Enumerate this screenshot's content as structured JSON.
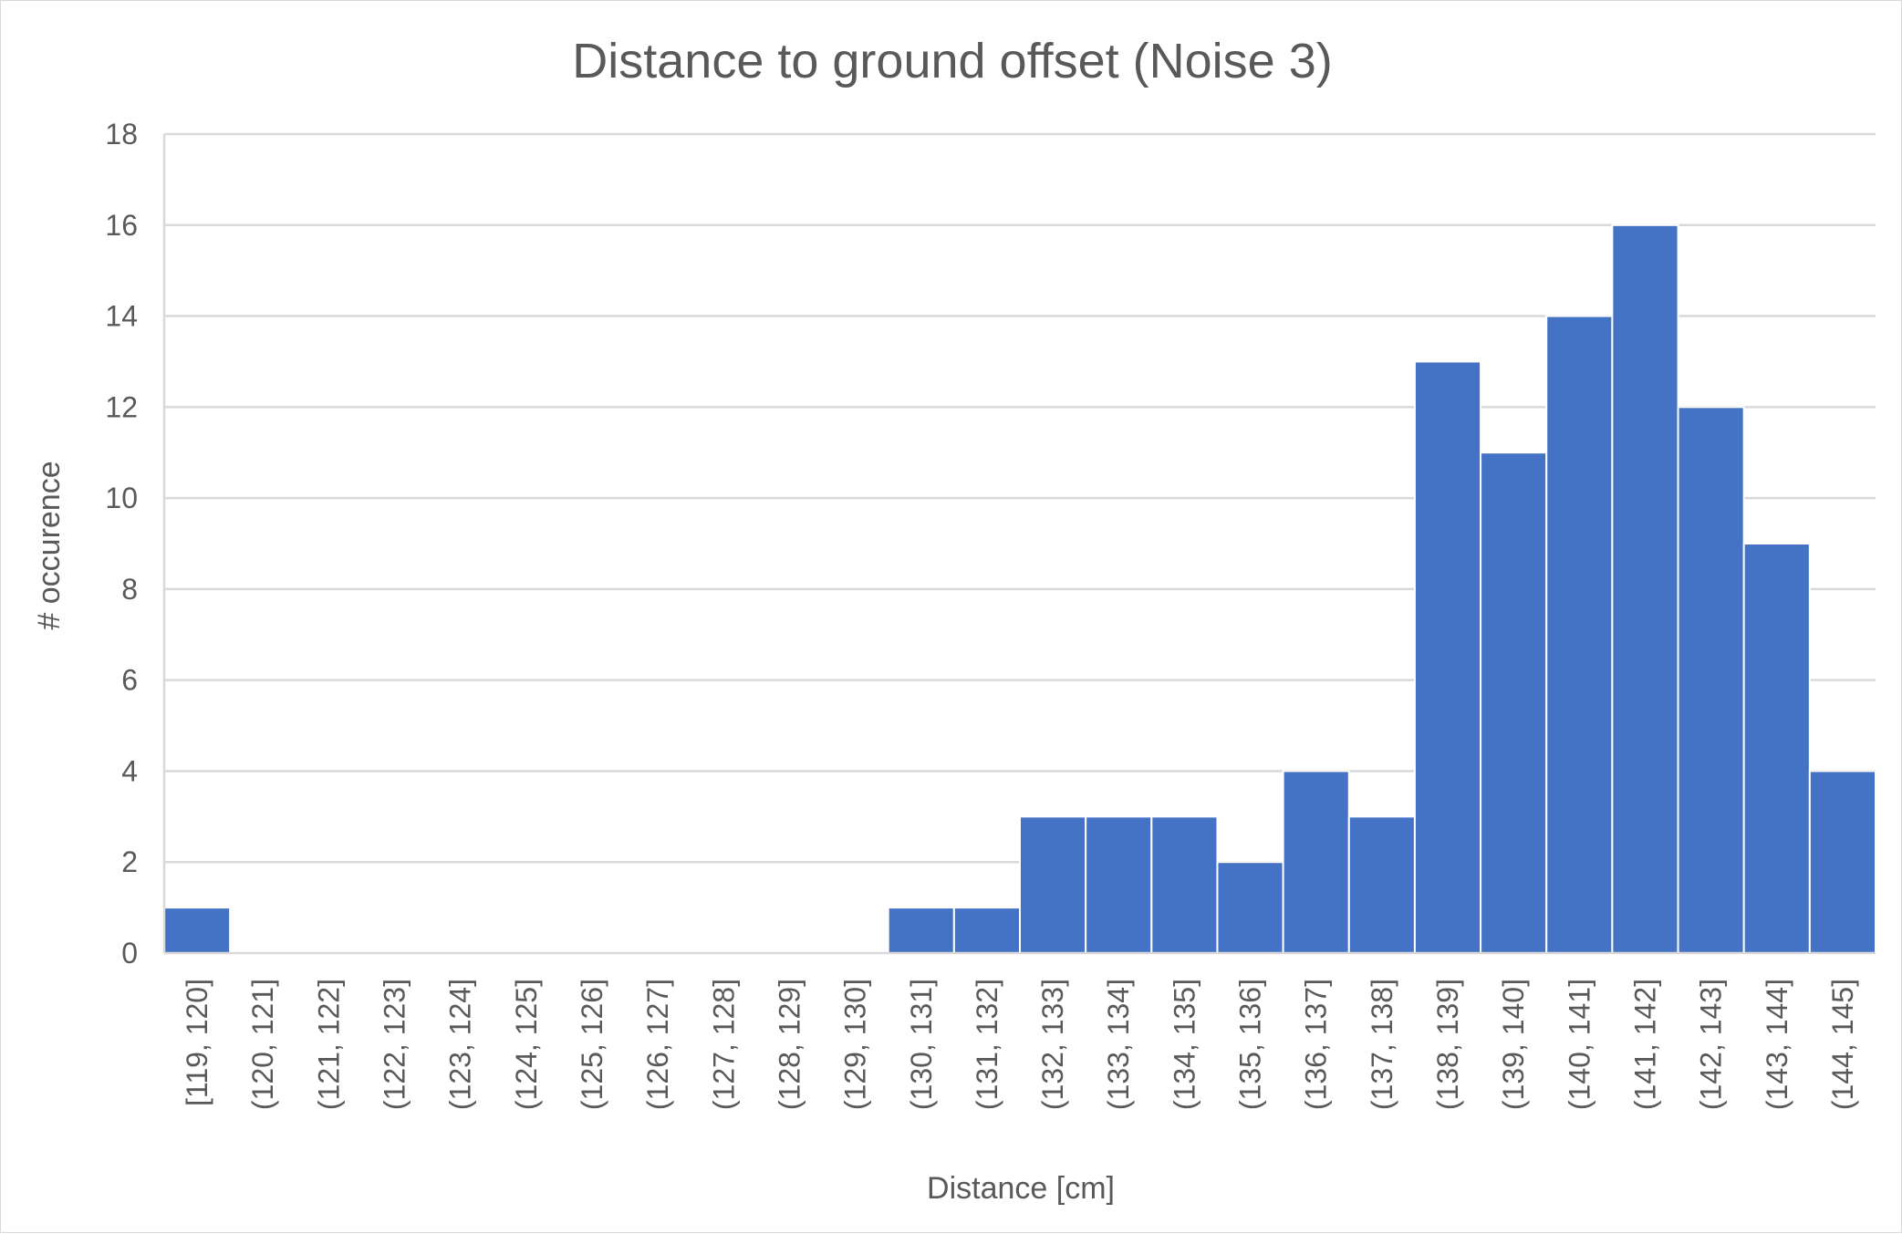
{
  "chart_data": {
    "type": "bar",
    "title": "Distance to ground offset (Noise 3)",
    "xlabel": "Distance [cm]",
    "ylabel": "# occurence",
    "ylim": [
      0,
      18
    ],
    "ytick_step": 2,
    "yticks": [
      "0",
      "2",
      "4",
      "6",
      "8",
      "10",
      "12",
      "14",
      "16",
      "18"
    ],
    "grid": true,
    "legend": "none",
    "bar_color": "#4472C4",
    "categories": [
      "[119, 120]",
      "(120, 121]",
      "(121, 122]",
      "(122, 123]",
      "(123, 124]",
      "(124, 125]",
      "(125, 126]",
      "(126, 127]",
      "(127, 128]",
      "(128, 129]",
      "(129, 130]",
      "(130, 131]",
      "(131, 132]",
      "(132, 133]",
      "(133, 134]",
      "(134, 135]",
      "(135, 136]",
      "(136, 137]",
      "(137, 138]",
      "(138, 139]",
      "(139, 140]",
      "(140, 141]",
      "(141, 142]",
      "(142, 143]",
      "(143, 144]",
      "(144, 145]"
    ],
    "values": [
      1,
      0,
      0,
      0,
      0,
      0,
      0,
      0,
      0,
      0,
      0,
      1,
      1,
      3,
      3,
      3,
      2,
      4,
      3,
      13,
      11,
      14,
      16,
      12,
      9,
      4
    ]
  }
}
